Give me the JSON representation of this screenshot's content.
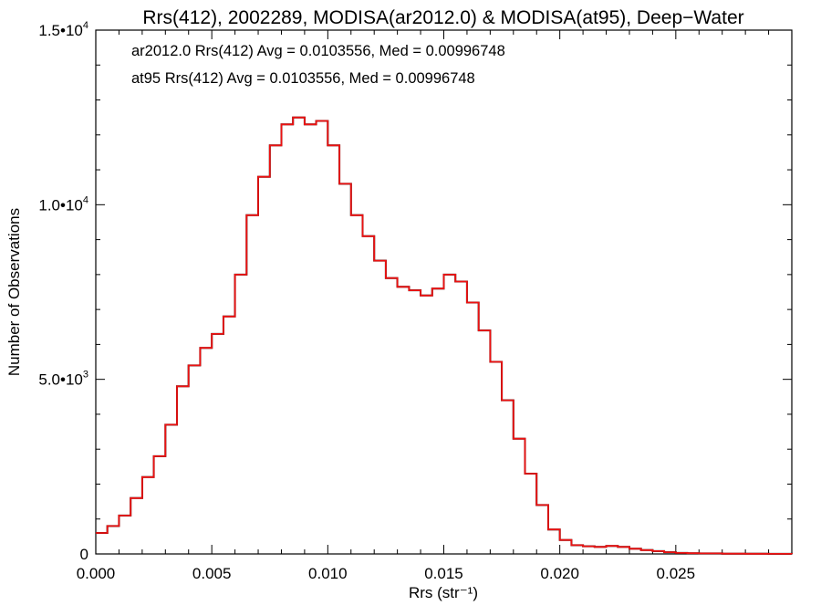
{
  "chart_data": {
    "type": "line",
    "title": "Rrs(412), 2002289, MODISA(ar2012.0) & MODISA(at95), Deep−Water",
    "xlabel": "Rrs (str⁻¹)",
    "ylabel": "Number of Observations",
    "xlim": [
      0.0,
      0.03
    ],
    "ylim": [
      0,
      15000
    ],
    "x_ticks": [
      "0.000",
      "0.005",
      "0.010",
      "0.015",
      "0.020",
      "0.025"
    ],
    "y_ticks": [
      {
        "value": 0,
        "mantissa": "0",
        "exp": ""
      },
      {
        "value": 5000,
        "mantissa": "5.0•10",
        "exp": "3"
      },
      {
        "value": 10000,
        "mantissa": "1.0•10",
        "exp": "4"
      },
      {
        "value": 15000,
        "mantissa": "1.5•10",
        "exp": "4"
      }
    ],
    "annotations": [
      {
        "text": "ar2012.0 Rrs(412) Avg = 0.0103556, Med = 0.00996748",
        "color": "#000000"
      },
      {
        "text": "at95 Rrs(412) Avg = 0.0103556, Med = 0.00996748",
        "color": "#ee1111"
      }
    ],
    "grid": false,
    "series": [
      {
        "color": "#000000",
        "x": [
          0.0,
          0.0005,
          0.001,
          0.0015,
          0.002,
          0.0025,
          0.003,
          0.0035,
          0.004,
          0.0045,
          0.005,
          0.0055,
          0.006,
          0.0065,
          0.007,
          0.0075,
          0.008,
          0.0085,
          0.009,
          0.0095,
          0.01,
          0.0105,
          0.011,
          0.0115,
          0.012,
          0.0125,
          0.013,
          0.0135,
          0.014,
          0.0145,
          0.015,
          0.0155,
          0.016,
          0.0165,
          0.017,
          0.0175,
          0.018,
          0.0185,
          0.019,
          0.0195,
          0.02,
          0.0205,
          0.021,
          0.0215,
          0.022,
          0.0225,
          0.023,
          0.0235,
          0.024,
          0.0245,
          0.025,
          0.0255,
          0.026,
          0.027,
          0.028,
          0.029,
          0.03
        ],
        "y": [
          600,
          800,
          1100,
          1600,
          2200,
          2800,
          3700,
          4800,
          5400,
          5900,
          6300,
          6800,
          8000,
          9700,
          10800,
          11700,
          12300,
          12500,
          12300,
          12400,
          11700,
          10600,
          9700,
          9100,
          8400,
          7900,
          7650,
          7550,
          7400,
          7600,
          8000,
          7800,
          7200,
          6400,
          5500,
          4400,
          3300,
          2300,
          1400,
          700,
          400,
          250,
          220,
          200,
          230,
          200,
          150,
          110,
          80,
          50,
          30,
          20,
          15,
          8,
          4,
          2,
          0
        ]
      },
      {
        "color": "#ee1111",
        "x": [
          0.0,
          0.0005,
          0.001,
          0.0015,
          0.002,
          0.0025,
          0.003,
          0.0035,
          0.004,
          0.0045,
          0.005,
          0.0055,
          0.006,
          0.0065,
          0.007,
          0.0075,
          0.008,
          0.0085,
          0.009,
          0.0095,
          0.01,
          0.0105,
          0.011,
          0.0115,
          0.012,
          0.0125,
          0.013,
          0.0135,
          0.014,
          0.0145,
          0.015,
          0.0155,
          0.016,
          0.0165,
          0.017,
          0.0175,
          0.018,
          0.0185,
          0.019,
          0.0195,
          0.02,
          0.0205,
          0.021,
          0.0215,
          0.022,
          0.0225,
          0.023,
          0.0235,
          0.024,
          0.0245,
          0.025,
          0.0255,
          0.026,
          0.027,
          0.028,
          0.029,
          0.03
        ],
        "y": [
          600,
          800,
          1100,
          1600,
          2200,
          2800,
          3700,
          4800,
          5400,
          5900,
          6300,
          6800,
          8000,
          9700,
          10800,
          11700,
          12300,
          12500,
          12300,
          12400,
          11700,
          10600,
          9700,
          9100,
          8400,
          7900,
          7650,
          7550,
          7400,
          7600,
          8000,
          7800,
          7200,
          6400,
          5500,
          4400,
          3300,
          2300,
          1400,
          700,
          400,
          250,
          220,
          200,
          230,
          200,
          150,
          110,
          80,
          50,
          30,
          20,
          15,
          8,
          4,
          2,
          0
        ]
      }
    ]
  }
}
